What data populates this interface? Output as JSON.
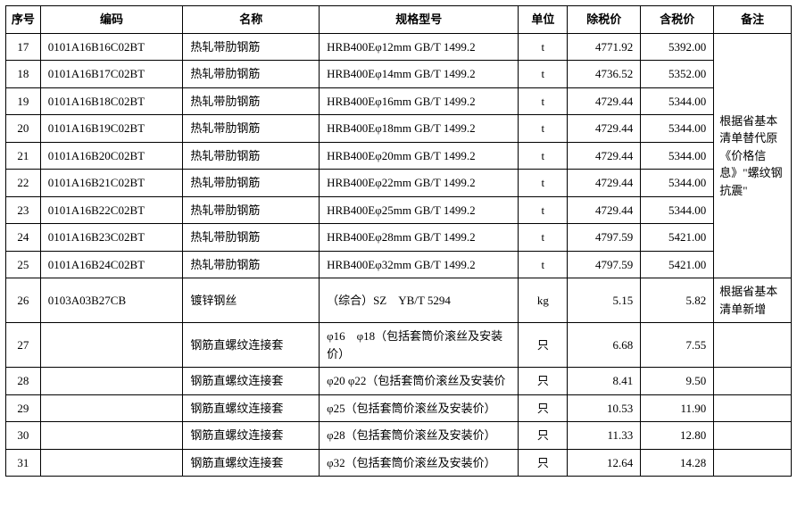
{
  "table": {
    "columns": [
      {
        "key": "seq",
        "label": "序号"
      },
      {
        "key": "code",
        "label": "编码"
      },
      {
        "key": "name",
        "label": "名称"
      },
      {
        "key": "spec",
        "label": "规格型号"
      },
      {
        "key": "unit",
        "label": "单位"
      },
      {
        "key": "price_excl",
        "label": "除税价"
      },
      {
        "key": "price_incl",
        "label": "含税价"
      },
      {
        "key": "note",
        "label": "备注"
      }
    ],
    "note_group1": "根据省基本清单替代原《价格信息》\"螺纹钢抗震\"",
    "note_group2": "根据省基本清单新增",
    "rows": [
      {
        "seq": "17",
        "code": "0101A16B16C02BT",
        "name": "热轧带肋钢筋",
        "spec": "HRB400Eφ12mm GB/T 1499.2",
        "unit": "t",
        "price_excl": "4771.92",
        "price_incl": "5392.00"
      },
      {
        "seq": "18",
        "code": "0101A16B17C02BT",
        "name": "热轧带肋钢筋",
        "spec": "HRB400Eφ14mm GB/T 1499.2",
        "unit": "t",
        "price_excl": "4736.52",
        "price_incl": "5352.00"
      },
      {
        "seq": "19",
        "code": "0101A16B18C02BT",
        "name": "热轧带肋钢筋",
        "spec": "HRB400Eφ16mm GB/T 1499.2",
        "unit": "t",
        "price_excl": "4729.44",
        "price_incl": "5344.00"
      },
      {
        "seq": "20",
        "code": "0101A16B19C02BT",
        "name": "热轧带肋钢筋",
        "spec": "HRB400Eφ18mm GB/T 1499.2",
        "unit": "t",
        "price_excl": "4729.44",
        "price_incl": "5344.00"
      },
      {
        "seq": "21",
        "code": "0101A16B20C02BT",
        "name": "热轧带肋钢筋",
        "spec": "HRB400Eφ20mm GB/T 1499.2",
        "unit": "t",
        "price_excl": "4729.44",
        "price_incl": "5344.00"
      },
      {
        "seq": "22",
        "code": "0101A16B21C02BT",
        "name": "热轧带肋钢筋",
        "spec": "HRB400Eφ22mm GB/T 1499.2",
        "unit": "t",
        "price_excl": "4729.44",
        "price_incl": "5344.00"
      },
      {
        "seq": "23",
        "code": "0101A16B22C02BT",
        "name": "热轧带肋钢筋",
        "spec": "HRB400Eφ25mm GB/T 1499.2",
        "unit": "t",
        "price_excl": "4729.44",
        "price_incl": "5344.00"
      },
      {
        "seq": "24",
        "code": "0101A16B23C02BT",
        "name": "热轧带肋钢筋",
        "spec": "HRB400Eφ28mm GB/T 1499.2",
        "unit": "t",
        "price_excl": "4797.59",
        "price_incl": "5421.00"
      },
      {
        "seq": "25",
        "code": "0101A16B24C02BT",
        "name": "热轧带肋钢筋",
        "spec": "HRB400Eφ32mm GB/T 1499.2",
        "unit": "t",
        "price_excl": "4797.59",
        "price_incl": "5421.00"
      },
      {
        "seq": "26",
        "code": "0103A03B27CB",
        "name": "镀锌钢丝",
        "spec": "（综合）SZ　YB/T 5294",
        "unit": "kg",
        "price_excl": "5.15",
        "price_incl": "5.82"
      },
      {
        "seq": "27",
        "code": "",
        "name": "钢筋直螺纹连接套",
        "spec": "φ16　φ18（包括套筒价滚丝及安装价）",
        "unit": "只",
        "price_excl": "6.68",
        "price_incl": "7.55"
      },
      {
        "seq": "28",
        "code": "",
        "name": "钢筋直螺纹连接套",
        "spec": "φ20 φ22（包括套筒价滚丝及安装价",
        "unit": "只",
        "price_excl": "8.41",
        "price_incl": "9.50"
      },
      {
        "seq": "29",
        "code": "",
        "name": "钢筋直螺纹连接套",
        "spec": "φ25（包括套筒价滚丝及安装价）",
        "unit": "只",
        "price_excl": "10.53",
        "price_incl": "11.90"
      },
      {
        "seq": "30",
        "code": "",
        "name": "钢筋直螺纹连接套",
        "spec": "φ28（包括套筒价滚丝及安装价）",
        "unit": "只",
        "price_excl": "11.33",
        "price_incl": "12.80"
      },
      {
        "seq": "31",
        "code": "",
        "name": "钢筋直螺纹连接套",
        "spec": "φ32（包括套筒价滚丝及安装价）",
        "unit": "只",
        "price_excl": "12.64",
        "price_incl": "14.28"
      }
    ]
  },
  "styles": {
    "font_family": "SimSun",
    "font_size": 13,
    "border_color": "#000000",
    "background_color": "#ffffff"
  }
}
